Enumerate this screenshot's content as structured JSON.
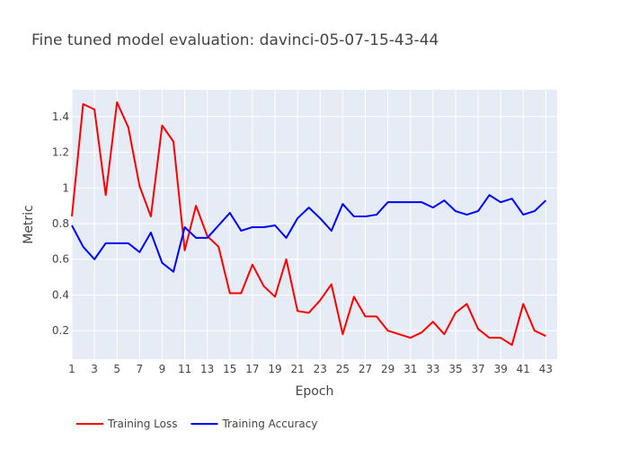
{
  "chart_data": {
    "type": "line",
    "title": "Fine tuned model evaluation: davinci-05-07-15-43-44",
    "xlabel": "Epoch",
    "ylabel": "Metric",
    "xlim": [
      1,
      44
    ],
    "ylim": [
      0.04,
      1.55
    ],
    "x_ticks": [
      1,
      3,
      5,
      7,
      9,
      11,
      13,
      15,
      17,
      19,
      21,
      23,
      25,
      27,
      29,
      31,
      33,
      35,
      37,
      39,
      41,
      43
    ],
    "y_ticks": [
      0.2,
      0.4,
      0.6,
      0.8,
      1,
      1.2,
      1.4
    ],
    "y_tick_labels": [
      "0.2",
      "0.4",
      "0.6",
      "0.8",
      "1",
      "1.2",
      "1.4"
    ],
    "grid": true,
    "plot_background": "#e5ecf6",
    "legend_position": "bottom-left, horizontal",
    "x": [
      1,
      2,
      3,
      4,
      5,
      6,
      7,
      8,
      9,
      10,
      11,
      12,
      13,
      14,
      15,
      16,
      17,
      18,
      19,
      20,
      21,
      22,
      23,
      24,
      25,
      26,
      27,
      28,
      29,
      30,
      31,
      32,
      33,
      34,
      35,
      36,
      37,
      38,
      39,
      40,
      41,
      42,
      43
    ],
    "series": [
      {
        "name": "Training Loss",
        "color": "#ff0000",
        "values": [
          0.84,
          1.47,
          1.44,
          0.96,
          1.48,
          1.34,
          1.01,
          0.84,
          1.35,
          1.26,
          0.65,
          0.9,
          0.73,
          0.67,
          0.41,
          0.41,
          0.57,
          0.45,
          0.39,
          0.6,
          0.31,
          0.3,
          0.37,
          0.46,
          0.18,
          0.39,
          0.28,
          0.28,
          0.2,
          0.18,
          0.16,
          0.19,
          0.25,
          0.18,
          0.3,
          0.35,
          0.21,
          0.16,
          0.16,
          0.12,
          0.35,
          0.2,
          0.17
        ]
      },
      {
        "name": "Training Accuracy",
        "color": "#0000ff",
        "values": [
          0.79,
          0.67,
          0.6,
          0.69,
          0.69,
          0.69,
          0.64,
          0.75,
          0.58,
          0.53,
          0.78,
          0.72,
          0.72,
          0.79,
          0.86,
          0.76,
          0.78,
          0.78,
          0.79,
          0.72,
          0.83,
          0.89,
          0.83,
          0.76,
          0.91,
          0.84,
          0.84,
          0.85,
          0.92,
          0.92,
          0.92,
          0.92,
          0.89,
          0.93,
          0.87,
          0.85,
          0.87,
          0.96,
          0.92,
          0.94,
          0.85,
          0.87,
          0.93
        ]
      }
    ]
  }
}
